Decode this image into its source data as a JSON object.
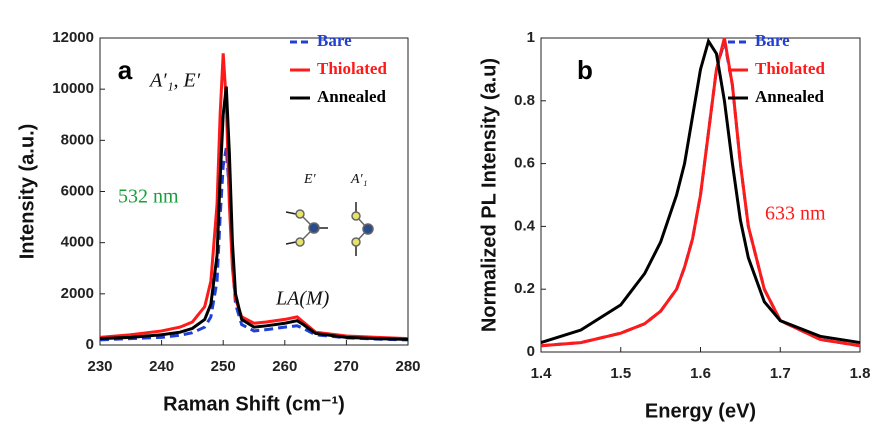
{
  "chart_data": [
    {
      "type": "line",
      "panel_label": "a",
      "x_label": "Raman Shift (cm⁻¹)",
      "y_label": "Intensity (a.u.)",
      "annotations": [
        "A′₁, E′",
        "532 nm",
        "LA(M)",
        "E′",
        "A′₁"
      ],
      "x": [
        230,
        235,
        240,
        243,
        245,
        247,
        248,
        249,
        249.5,
        250,
        250.5,
        251,
        251.5,
        252,
        253,
        255,
        257,
        260,
        262,
        263,
        265,
        270,
        275,
        280
      ],
      "series": [
        {
          "name": "Bare",
          "color": "#1f3fd6",
          "dashed": true,
          "values": [
            200,
            250,
            300,
            380,
            480,
            700,
            1100,
            2500,
            5000,
            7000,
            7700,
            6000,
            3200,
            1600,
            800,
            550,
            600,
            700,
            750,
            650,
            400,
            280,
            230,
            200
          ]
        },
        {
          "name": "Thiolated",
          "color": "#ff1a1a",
          "dashed": false,
          "values": [
            300,
            400,
            550,
            700,
            900,
            1500,
            2500,
            5500,
            9000,
            11400,
            9500,
            5500,
            3000,
            1800,
            1100,
            850,
            900,
            1000,
            1100,
            900,
            500,
            350,
            300,
            250
          ]
        },
        {
          "name": "Annealed",
          "color": "#000000",
          "dashed": false,
          "values": [
            250,
            300,
            400,
            500,
            650,
            1000,
            1600,
            3500,
            6500,
            9000,
            10100,
            7500,
            4000,
            2000,
            1000,
            700,
            750,
            850,
            950,
            800,
            450,
            300,
            250,
            220
          ]
        }
      ],
      "xlim": [
        230,
        280
      ],
      "xticks": [
        230,
        240,
        250,
        260,
        270,
        280
      ],
      "ylim": [
        0,
        12000
      ],
      "yticks": [
        0,
        2000,
        4000,
        6000,
        8000,
        10000,
        12000
      ]
    },
    {
      "type": "line",
      "panel_label": "b",
      "x_label": "Energy (eV)",
      "y_label": "Normalized PL Intensity (a.u)",
      "annotations": [
        "633 nm"
      ],
      "x": [
        1.4,
        1.45,
        1.5,
        1.53,
        1.55,
        1.57,
        1.58,
        1.59,
        1.6,
        1.61,
        1.62,
        1.63,
        1.64,
        1.65,
        1.66,
        1.68,
        1.7,
        1.75,
        1.8
      ],
      "series": [
        {
          "name": "Bare",
          "color": "#1f3fd6",
          "dashed": true,
          "values": [
            0.02,
            0.03,
            0.06,
            0.09,
            0.13,
            0.2,
            0.27,
            0.36,
            0.5,
            0.7,
            0.9,
            0.99,
            0.85,
            0.6,
            0.4,
            0.2,
            0.1,
            0.04,
            0.02
          ]
        },
        {
          "name": "Thiolated",
          "color": "#ff1a1a",
          "dashed": false,
          "values": [
            0.02,
            0.03,
            0.06,
            0.09,
            0.13,
            0.2,
            0.27,
            0.36,
            0.5,
            0.7,
            0.9,
            1.0,
            0.85,
            0.6,
            0.4,
            0.2,
            0.1,
            0.04,
            0.02
          ]
        },
        {
          "name": "Annealed",
          "color": "#000000",
          "dashed": false,
          "values": [
            0.03,
            0.07,
            0.15,
            0.25,
            0.35,
            0.5,
            0.6,
            0.75,
            0.9,
            0.99,
            0.95,
            0.8,
            0.6,
            0.42,
            0.3,
            0.16,
            0.1,
            0.05,
            0.03
          ]
        }
      ],
      "xlim": [
        1.4,
        1.8
      ],
      "xticks": [
        1.4,
        1.5,
        1.6,
        1.7,
        1.8
      ],
      "ylim": [
        0,
        1
      ],
      "yticks": [
        0,
        0.2,
        0.4,
        0.6,
        0.8,
        1
      ]
    }
  ]
}
